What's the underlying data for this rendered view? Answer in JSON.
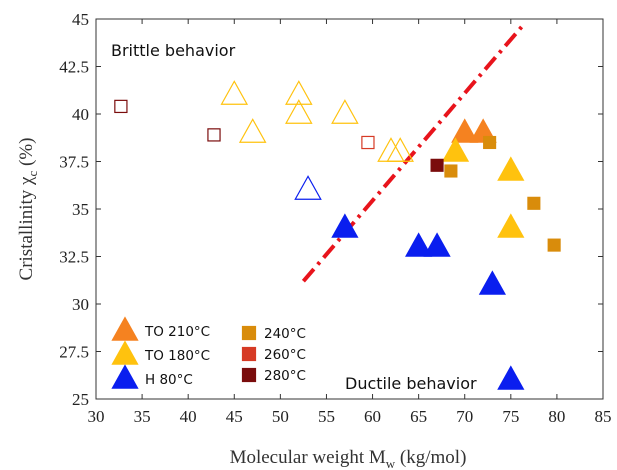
{
  "chart_data": {
    "type": "scatter",
    "xlabel": "Molecular weight M",
    "xlabel_sub": "w",
    "xlabel_unit": "(kg/mol)",
    "ylabel": "Cristallinity χ",
    "ylabel_sub": "c",
    "ylabel_unit": "(%)",
    "xlim": [
      30,
      85
    ],
    "ylim": [
      25,
      45
    ],
    "xticks": [
      30,
      35,
      40,
      45,
      50,
      55,
      60,
      65,
      70,
      75,
      80,
      85
    ],
    "yticks": [
      25,
      27.5,
      30,
      32.5,
      35,
      37.5,
      40,
      42.5,
      45
    ],
    "xtick_labels": [
      "30",
      "35",
      "40",
      "45",
      "50",
      "55",
      "60",
      "65",
      "70",
      "75",
      "80",
      "85"
    ],
    "ytick_labels": [
      "25",
      "27.5",
      "30",
      "32.5",
      "35",
      "37.5",
      "40",
      "42.5",
      "45"
    ],
    "annotations": {
      "brittle": "Brittle behavior",
      "ductile": "Ductile behavior"
    },
    "legend_position": "bottom-left",
    "dashdot_line": {
      "x": [
        52.5,
        76.2
      ],
      "y": [
        31.2,
        44.6
      ],
      "color": "#e8141c"
    },
    "series": [
      {
        "name": "TO 210°C",
        "marker": "triangle",
        "color": "#f58220",
        "filled": [
          [
            70,
            39
          ],
          [
            72,
            39
          ]
        ],
        "open": []
      },
      {
        "name": "TO 180°C",
        "marker": "triangle",
        "color": "#ffc20e",
        "filled": [
          [
            69,
            38
          ],
          [
            75,
            37
          ],
          [
            75,
            34
          ]
        ],
        "open": [
          [
            45,
            41
          ],
          [
            52,
            41
          ],
          [
            52,
            40
          ],
          [
            57,
            40
          ],
          [
            47,
            39
          ],
          [
            62,
            38
          ],
          [
            63,
            38
          ]
        ]
      },
      {
        "name": "H 80°C",
        "marker": "triangle",
        "color": "#0a1eef",
        "filled": [
          [
            57,
            34
          ],
          [
            65,
            33
          ],
          [
            67,
            33
          ],
          [
            73,
            31
          ],
          [
            75,
            26
          ]
        ],
        "open": [
          [
            53,
            36
          ]
        ]
      },
      {
        "name": "240°C",
        "marker": "square",
        "color": "#d98c0b",
        "filled": [
          [
            72.7,
            38.5
          ],
          [
            68.5,
            37
          ],
          [
            77.5,
            35.3
          ],
          [
            79.7,
            33.1
          ]
        ],
        "open": []
      },
      {
        "name": "260°C",
        "marker": "square",
        "color": "#d63a25",
        "filled": [],
        "open": [
          [
            59.5,
            38.5
          ]
        ]
      },
      {
        "name": "280°C",
        "marker": "square",
        "color": "#7a0c0c",
        "filled": [
          [
            67,
            37.3
          ]
        ],
        "open": [
          [
            32.7,
            40.4
          ],
          [
            42.8,
            38.9
          ]
        ]
      }
    ]
  }
}
